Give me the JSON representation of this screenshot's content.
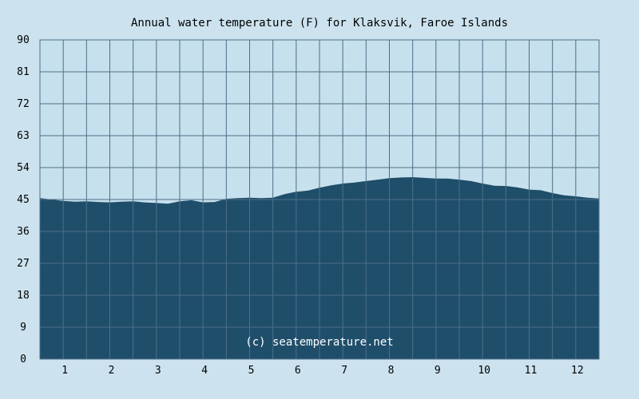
{
  "chart_data": {
    "type": "area",
    "title": "Annual water temperature (F) for Klaksvik, Faroe Islands",
    "xlabel": "",
    "ylabel": "",
    "x_tick_labels": [
      "1",
      "2",
      "3",
      "4",
      "5",
      "6",
      "7",
      "8",
      "9",
      "10",
      "11",
      "12"
    ],
    "y_ticks": [
      0,
      9,
      18,
      27,
      36,
      45,
      54,
      63,
      72,
      81,
      90
    ],
    "xlim": [
      0.5,
      12.5
    ],
    "ylim": [
      0,
      90
    ],
    "grid": true,
    "watermark": "(c) seatemperature.net",
    "colors": {
      "background": "#cce3ef",
      "plot_background": "#c7e0ed",
      "fill": "#1f4e6a",
      "grid": "#4d6f88"
    },
    "series": [
      {
        "x": [
          0.5,
          0.75,
          1.0,
          1.25,
          1.5,
          1.75,
          2.0,
          2.25,
          2.5,
          2.75,
          3.0,
          3.25,
          3.5,
          3.75,
          4.0,
          4.25,
          4.5,
          4.75,
          5.0,
          5.25,
          5.5,
          5.75,
          6.0,
          6.25,
          6.5,
          6.75,
          7.0,
          7.25,
          7.5,
          7.75,
          8.0,
          8.25,
          8.5,
          8.75,
          9.0,
          9.25,
          9.5,
          9.75,
          10.0,
          10.25,
          10.5,
          10.75,
          11.0,
          11.25,
          11.5,
          11.75,
          12.0,
          12.25,
          12.5
        ],
        "values": [
          45.4,
          45.0,
          44.6,
          44.4,
          44.5,
          44.3,
          44.2,
          44.4,
          44.5,
          44.2,
          44.0,
          43.8,
          44.5,
          44.8,
          44.2,
          44.3,
          45.2,
          45.4,
          45.5,
          45.4,
          45.5,
          46.5,
          47.2,
          47.5,
          48.3,
          49.0,
          49.5,
          49.8,
          50.2,
          50.6,
          51.0,
          51.2,
          51.3,
          51.1,
          50.9,
          50.9,
          50.6,
          50.2,
          49.5,
          48.9,
          48.8,
          48.4,
          47.8,
          47.6,
          46.8,
          46.2,
          45.9,
          45.5,
          45.3
        ]
      }
    ]
  }
}
